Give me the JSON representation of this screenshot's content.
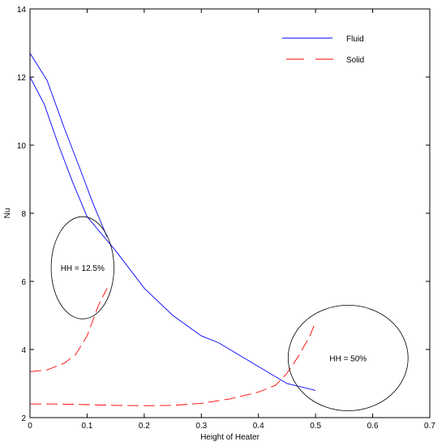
{
  "chart_data": {
    "type": "line",
    "xlabel": "Height of Heater",
    "ylabel": "Nu",
    "xlim": [
      0,
      0.7
    ],
    "ylim": [
      2,
      14
    ],
    "xticks": [
      "0",
      "0.1",
      "0.2",
      "0.3",
      "0.4",
      "0.5",
      "0.6",
      "0.7"
    ],
    "yticks": [
      "2",
      "4",
      "6",
      "8",
      "10",
      "12",
      "14"
    ],
    "grid": false,
    "legend": {
      "placement": "top-right"
    },
    "legend_entries": [
      "Fluid",
      "Solid"
    ],
    "series": [
      {
        "name": "Fluid",
        "color": "#0000ff",
        "style": "solid",
        "x": [
          0,
          0.03,
          0.06,
          0.09,
          0.11,
          0.135
        ],
        "y": [
          12.7,
          11.9,
          10.5,
          9.2,
          8.3,
          7.3
        ]
      },
      {
        "name": "Fluid",
        "color": "#0000ff",
        "style": "solid",
        "x": [
          0,
          0.025,
          0.05,
          0.075,
          0.1,
          0.15,
          0.2,
          0.25,
          0.3,
          0.33,
          0.4,
          0.45,
          0.5
        ],
        "y": [
          12,
          11.2,
          10,
          8.9,
          7.9,
          6.9,
          5.8,
          5,
          4.4,
          4.2,
          3.5,
          3.0,
          2.8
        ]
      },
      {
        "name": "Solid",
        "color": "#ff0000",
        "style": "dashed",
        "x": [
          0,
          0.03,
          0.06,
          0.08,
          0.1,
          0.12,
          0.135
        ],
        "y": [
          3.35,
          3.4,
          3.6,
          3.85,
          4.4,
          5.3,
          5.8
        ]
      },
      {
        "name": "Solid",
        "color": "#ff0000",
        "style": "dashed",
        "x": [
          0,
          0.05,
          0.1,
          0.15,
          0.2,
          0.25,
          0.3,
          0.35,
          0.4,
          0.43,
          0.45,
          0.47,
          0.49,
          0.5
        ],
        "y": [
          2.4,
          2.4,
          2.38,
          2.36,
          2.35,
          2.36,
          2.42,
          2.55,
          2.75,
          2.95,
          3.3,
          3.8,
          4.4,
          4.8
        ]
      }
    ],
    "annotations": [
      {
        "text": "HH = 12.5%",
        "ellipse": {
          "cx": 0.092,
          "cy": 6.4,
          "rx": 0.055,
          "ry": 1.5
        }
      },
      {
        "text": "HH = 50%",
        "ellipse": {
          "cx": 0.557,
          "cy": 3.75,
          "rx": 0.105,
          "ry": 1.55
        }
      }
    ]
  }
}
